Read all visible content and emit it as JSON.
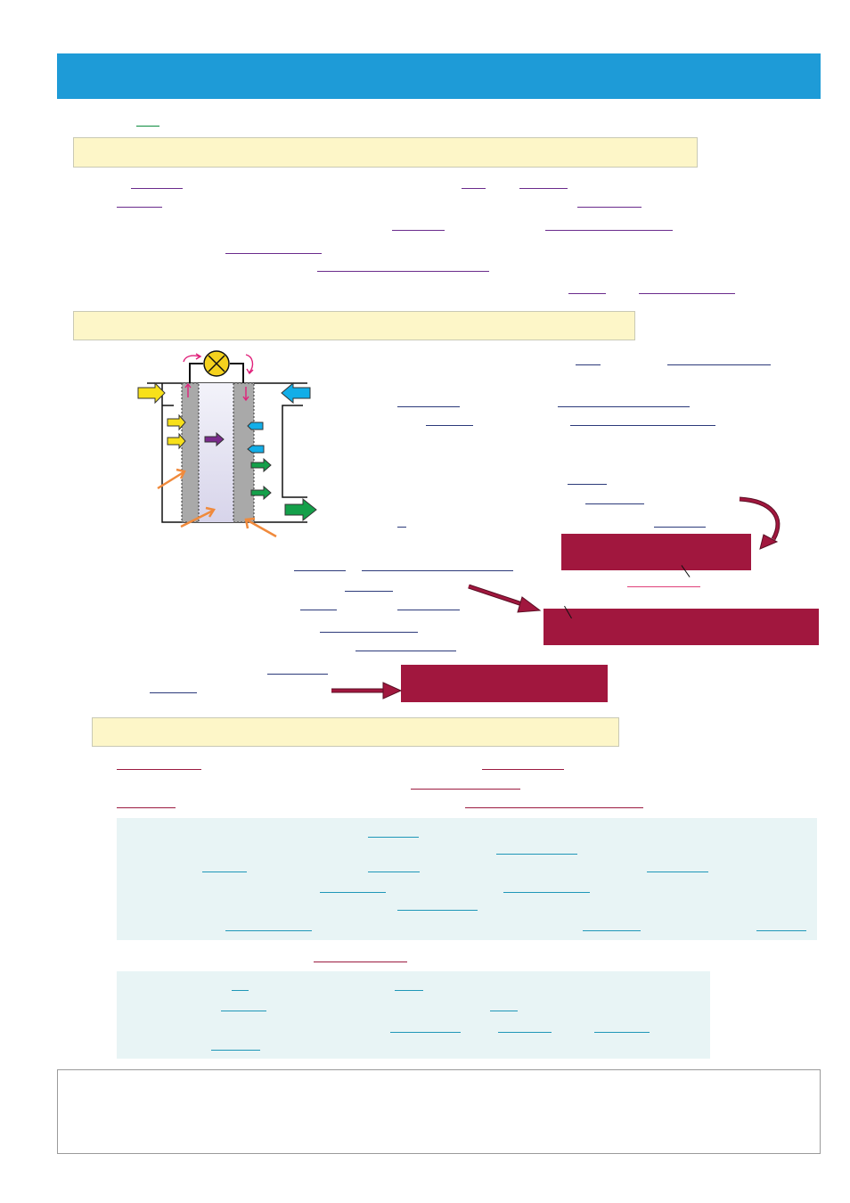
{
  "page": {
    "title": "",
    "colors": {
      "title_bar": "#1e9bd7",
      "section_header": "#fdf6c8",
      "highlight_box": "#a1173e",
      "info_panel": "#e8f4f5"
    }
  },
  "sections": [
    {
      "heading": ""
    },
    {
      "heading": ""
    },
    {
      "heading": ""
    }
  ],
  "highlight_boxes": [
    {
      "text": ""
    },
    {
      "text": ""
    },
    {
      "text": ""
    }
  ],
  "diagram": {
    "kind": "fuel cell",
    "icons": [
      "lamp-icon",
      "input-arrow-icon",
      "output-arrow-icon",
      "ion-arrow-icon",
      "heat-arrow-icon"
    ]
  },
  "footer_note": {
    "text": ""
  }
}
